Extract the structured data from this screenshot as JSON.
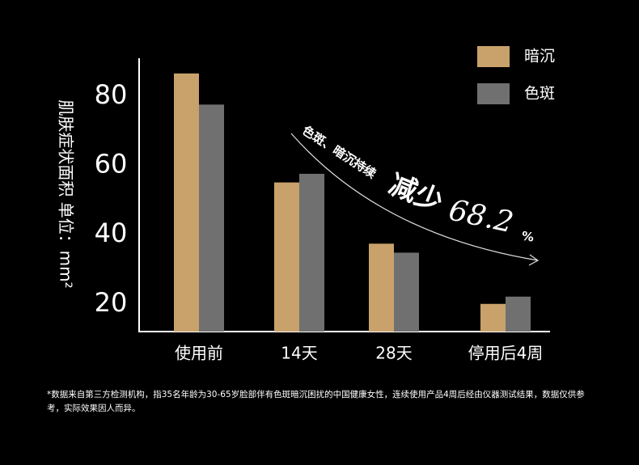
{
  "chart_data": {
    "type": "bar",
    "y_label": "肌肤症状面积 单位：mm²",
    "categories": [
      "使用前",
      "14天",
      "28天",
      "停用后4周"
    ],
    "series": [
      {
        "name": "暗沉",
        "color": "#c9a26b",
        "values": [
          86.6,
          55.1,
          37.4,
          20
        ]
      },
      {
        "name": "色斑",
        "color": "#707070",
        "values": [
          77.6,
          57.6,
          34.8,
          22.1
        ]
      }
    ],
    "ylim": [
      12,
      91
    ],
    "yticks": [
      20,
      40,
      60,
      80
    ],
    "annotation": {
      "lead": "色斑、暗沉持续",
      "verb": "减少",
      "number": "68.2",
      "unit": "%"
    },
    "footnote": "*数据来自第三方检测机构，指35名年龄为30-65岁脸部伴有色斑暗沉困扰的中国健康女性，连续使用产品4周后经由仪器测试结果，数据仅供参考，实际效果因人而异。"
  }
}
